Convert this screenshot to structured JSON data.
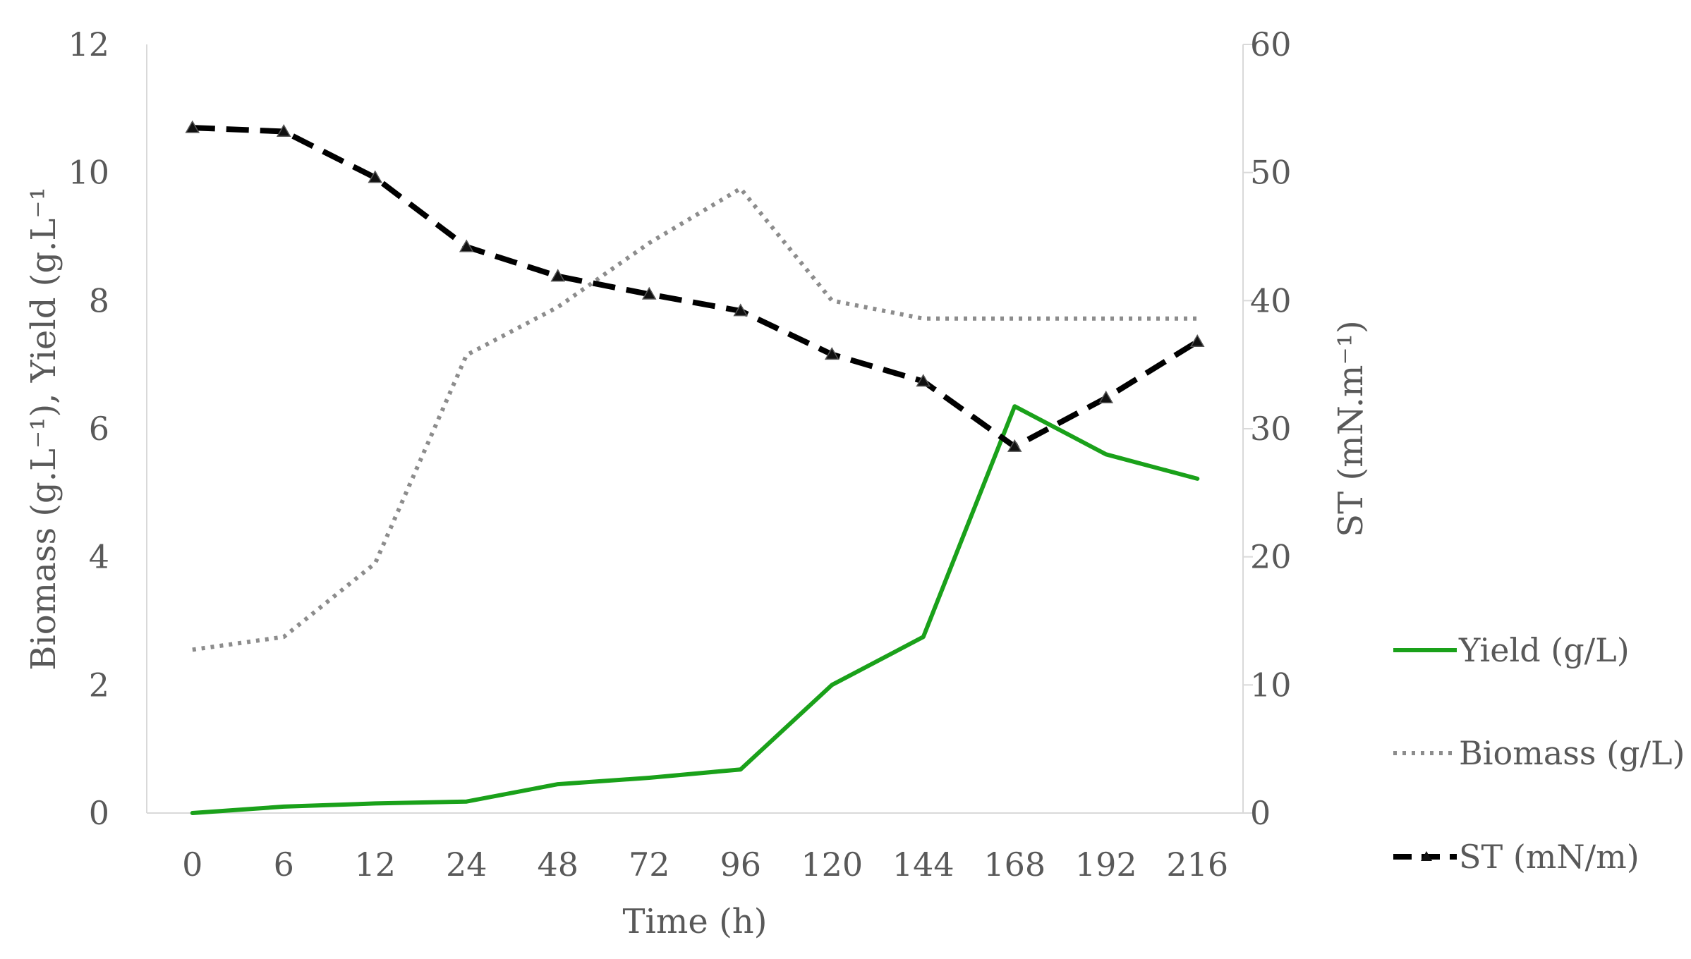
{
  "chart_data": {
    "type": "line",
    "categories": [
      "0",
      "6",
      "12",
      "24",
      "48",
      "72",
      "96",
      "120",
      "144",
      "168",
      "192",
      "216"
    ],
    "xlabel": "Time (h)",
    "ylabel_left": "Biomass (g.L⁻¹), Yield (g.L⁻¹",
    "ylabel_right": "ST (mN.m⁻¹)",
    "y_left": {
      "min": 0,
      "max": 12,
      "ticks": [
        "0",
        "2",
        "4",
        "6",
        "8",
        "10",
        "12"
      ]
    },
    "y_right": {
      "min": 0,
      "max": 60,
      "ticks": [
        "0",
        "10",
        "20",
        "30",
        "40",
        "50",
        "60"
      ]
    },
    "grid": false,
    "legend_position": "right",
    "series": [
      {
        "name": "Yield (g/L)",
        "axis": "left",
        "style": "solid",
        "color": "#1aa11a",
        "values": [
          0,
          0.1,
          0.15,
          0.18,
          0.45,
          0.55,
          0.68,
          2.0,
          2.75,
          6.35,
          5.6,
          5.22
        ]
      },
      {
        "name": "Biomass (g/L)",
        "axis": "left",
        "style": "dotted",
        "color": "#8c8c8c",
        "values": [
          2.55,
          2.75,
          3.9,
          7.15,
          7.9,
          8.9,
          9.75,
          8.0,
          7.72,
          7.72,
          7.72,
          7.72
        ]
      },
      {
        "name": "ST (mN/m)",
        "axis": "right",
        "style": "dashed",
        "marker": "triangle",
        "color": "#000000",
        "values": [
          53.5,
          53.2,
          49.6,
          44.2,
          41.9,
          40.5,
          39.2,
          35.8,
          33.7,
          28.6,
          32.4,
          36.8
        ]
      }
    ]
  }
}
